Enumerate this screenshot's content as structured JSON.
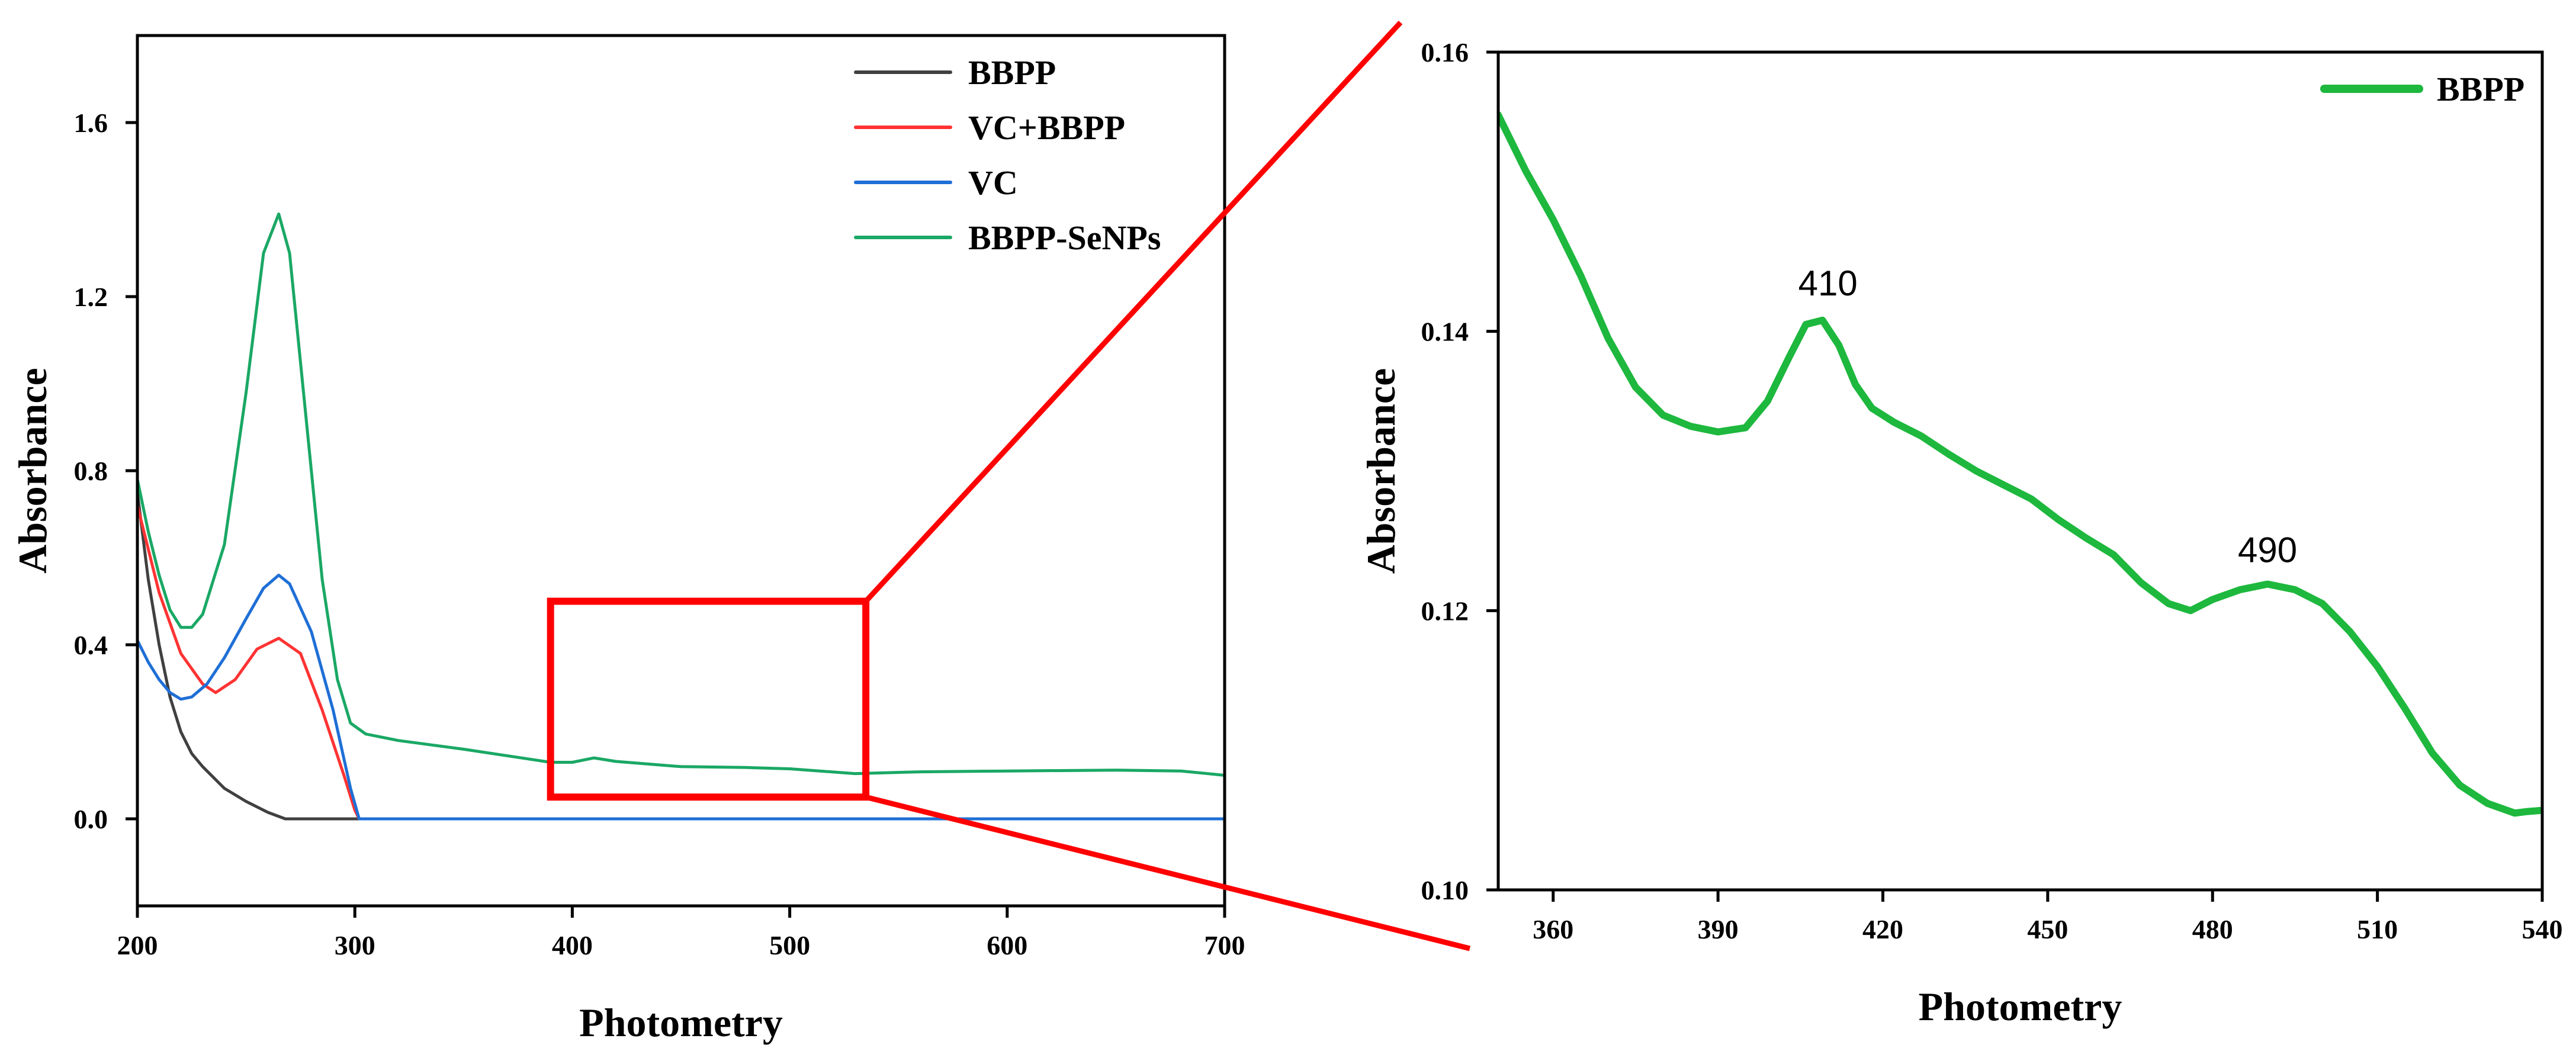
{
  "chart_data": [
    {
      "type": "line",
      "xlabel": "Photometry",
      "ylabel": "Absorbance",
      "xlim": [
        200,
        700
      ],
      "ylim": [
        -0.2,
        1.8
      ],
      "xticks": [
        200,
        300,
        400,
        500,
        600,
        700
      ],
      "yticks": [
        0.0,
        0.4,
        0.8,
        1.2,
        1.6
      ],
      "xtick_labels": [
        "200",
        "300",
        "400",
        "500",
        "600",
        "700"
      ],
      "ytick_labels": [
        "0.0",
        "0.4",
        "0.8",
        "1.2",
        "1.6"
      ],
      "legend_position": "top-right",
      "series": [
        {
          "name": "BBPP",
          "color": "#404040",
          "x": [
            200,
            205,
            210,
            215,
            220,
            225,
            230,
            240,
            250,
            260,
            268,
            275,
            300,
            400,
            500,
            600,
            700
          ],
          "y": [
            0.75,
            0.55,
            0.4,
            0.28,
            0.2,
            0.15,
            0.12,
            0.07,
            0.04,
            0.015,
            0.0,
            0.0,
            0.0,
            0.0,
            0.0,
            0.0,
            0.0
          ]
        },
        {
          "name": "VC+BBPP",
          "color": "#ff3333",
          "x": [
            200,
            210,
            220,
            230,
            236,
            245,
            255,
            265,
            275,
            285,
            295,
            300,
            302,
            400,
            500,
            600,
            700
          ],
          "y": [
            0.72,
            0.52,
            0.38,
            0.31,
            0.29,
            0.32,
            0.39,
            0.415,
            0.38,
            0.25,
            0.1,
            0.02,
            0.0,
            0.0,
            0.0,
            0.0,
            0.0
          ]
        },
        {
          "name": "VC",
          "color": "#1f6fd6",
          "x": [
            200,
            205,
            210,
            215,
            220,
            225,
            232,
            240,
            250,
            258,
            265,
            270,
            280,
            290,
            298,
            302,
            400,
            500,
            600,
            700
          ],
          "y": [
            0.41,
            0.36,
            0.32,
            0.29,
            0.275,
            0.28,
            0.31,
            0.37,
            0.46,
            0.53,
            0.56,
            0.54,
            0.43,
            0.25,
            0.07,
            0.0,
            0.0,
            0.0,
            0.0,
            0.0
          ]
        },
        {
          "name": "BBPP-SeNPs",
          "color": "#1aa865",
          "x": [
            200,
            205,
            210,
            215,
            220,
            225,
            230,
            240,
            250,
            258,
            265,
            270,
            278,
            285,
            292,
            298,
            305,
            320,
            350,
            390,
            400,
            410,
            420,
            450,
            480,
            500,
            530,
            560,
            600,
            650,
            680,
            700
          ],
          "y": [
            0.78,
            0.66,
            0.56,
            0.48,
            0.44,
            0.44,
            0.47,
            0.63,
            0.98,
            1.3,
            1.39,
            1.3,
            0.9,
            0.55,
            0.32,
            0.22,
            0.195,
            0.18,
            0.16,
            0.13,
            0.13,
            0.14,
            0.132,
            0.12,
            0.118,
            0.115,
            0.104,
            0.108,
            0.11,
            0.112,
            0.11,
            0.1
          ]
        }
      ]
    },
    {
      "type": "line",
      "xlabel": "Photometry",
      "ylabel": "Absorbance",
      "xlim": [
        350,
        540
      ],
      "ylim": [
        0.1,
        0.16
      ],
      "xticks": [
        360,
        390,
        420,
        450,
        480,
        510,
        540
      ],
      "yticks": [
        0.1,
        0.12,
        0.14,
        0.16
      ],
      "xtick_labels": [
        "360",
        "390",
        "420",
        "450",
        "480",
        "510",
        "540"
      ],
      "ytick_labels": [
        "0.10",
        "0.12",
        "0.14",
        "0.16"
      ],
      "legend_position": "top-right",
      "annotations": [
        {
          "text": "410",
          "x": 410,
          "y": 0.1413
        },
        {
          "text": "490",
          "x": 490,
          "y": 0.1222
        }
      ],
      "series": [
        {
          "name": "BBPP",
          "color": "#1db83d",
          "x": [
            350,
            355,
            360,
            365,
            370,
            375,
            380,
            385,
            390,
            395,
            399,
            403,
            406,
            409,
            412,
            415,
            418,
            422,
            427,
            432,
            437,
            442,
            447,
            452,
            457,
            462,
            467,
            472,
            476,
            480,
            485,
            490,
            495,
            500,
            505,
            510,
            515,
            520,
            525,
            530,
            535,
            537,
            540
          ],
          "y": [
            0.1555,
            0.1515,
            0.148,
            0.144,
            0.1395,
            0.136,
            0.134,
            0.1332,
            0.1328,
            0.1331,
            0.135,
            0.1382,
            0.1405,
            0.1408,
            0.139,
            0.1362,
            0.1345,
            0.1335,
            0.1325,
            0.1312,
            0.13,
            0.129,
            0.128,
            0.1265,
            0.1252,
            0.124,
            0.122,
            0.1205,
            0.12,
            0.1208,
            0.1215,
            0.1219,
            0.1215,
            0.1205,
            0.1185,
            0.116,
            0.113,
            0.1098,
            0.1075,
            0.1062,
            0.1055,
            0.1056,
            0.1057
          ]
        }
      ]
    }
  ],
  "zoom_box": {
    "x_range": [
      390,
      535
    ],
    "y_range": [
      0.05,
      0.5
    ],
    "color": "#ff0000"
  }
}
